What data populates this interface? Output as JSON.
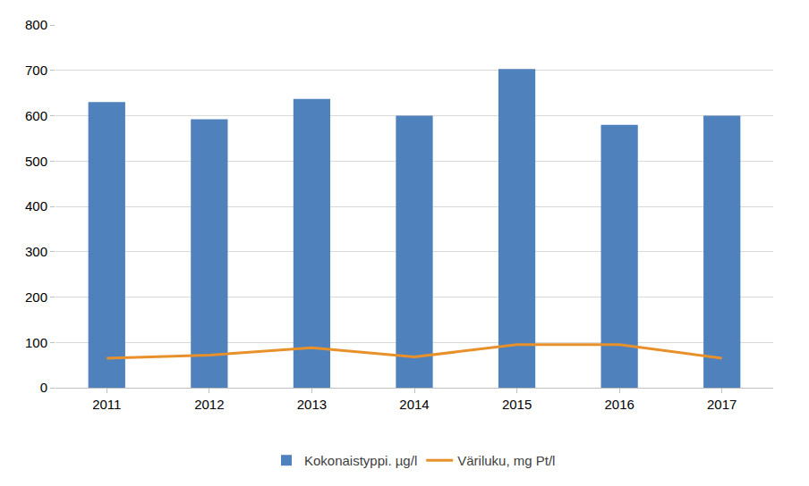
{
  "chart_data": {
    "type": "bar",
    "categories": [
      "2011",
      "2012",
      "2013",
      "2014",
      "2015",
      "2016",
      "2017"
    ],
    "series": [
      {
        "name": "Kokonaistyppi. µg/l",
        "type": "bar",
        "color": "#4f81bd",
        "values": [
          630,
          592,
          637,
          600,
          703,
          580,
          600
        ]
      },
      {
        "name": "Väriluku, mg Pt/l",
        "type": "line",
        "color": "#e8912b",
        "values": [
          65,
          72,
          88,
          68,
          95,
          95,
          65
        ]
      }
    ],
    "ylim": [
      0,
      800
    ],
    "yticks": [
      0,
      100,
      200,
      300,
      400,
      500,
      600,
      700,
      800
    ],
    "grid": true,
    "legend": "bottom"
  }
}
